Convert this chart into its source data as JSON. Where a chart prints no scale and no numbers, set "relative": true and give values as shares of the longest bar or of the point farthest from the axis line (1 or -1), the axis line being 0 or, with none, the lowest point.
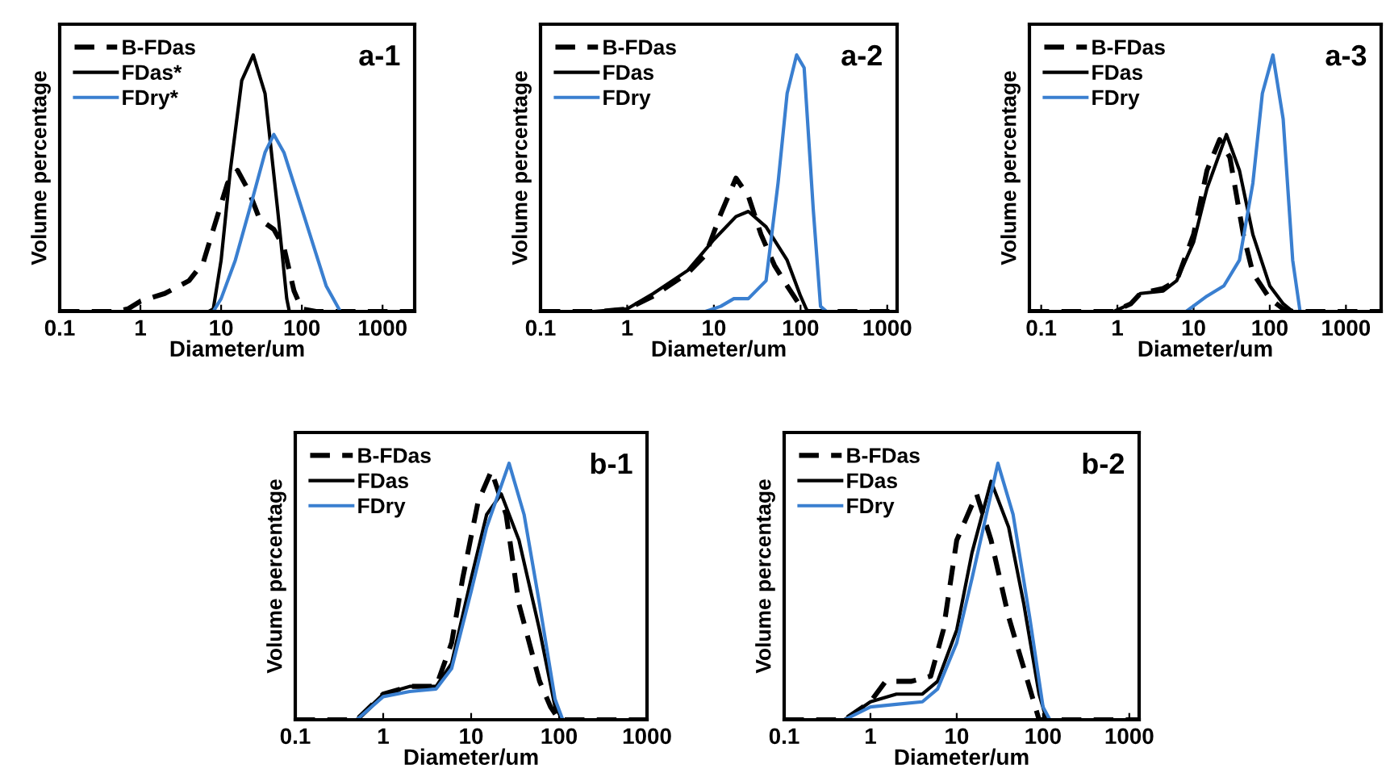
{
  "chart_data": [
    {
      "type": "line",
      "relative": true,
      "log": "x",
      "xlabel": "Diameter/um",
      "ylabel": "Volume percentage",
      "annotations": [
        "a-1"
      ],
      "legend": "top left",
      "xlim": [
        0.1,
        2500
      ],
      "xticks": [
        0.1,
        1,
        10,
        100,
        1000
      ],
      "series": [
        {
          "name": "B-FDas",
          "color": "#000000",
          "line_style": "dashed",
          "x": [
            0.1,
            0.5,
            0.7,
            1,
            2,
            4,
            6,
            8,
            12,
            16,
            22,
            30,
            45,
            60,
            80,
            100,
            150,
            2500
          ],
          "values": [
            0,
            0,
            0.01,
            0.04,
            0.07,
            0.12,
            0.19,
            0.32,
            0.5,
            0.55,
            0.47,
            0.36,
            0.32,
            0.25,
            0.08,
            0.01,
            0,
            0
          ]
        },
        {
          "name": "FDas*",
          "color": "#000000",
          "line_style": "solid",
          "x": [
            0.1,
            7,
            8,
            10,
            13,
            18,
            25,
            35,
            50,
            65,
            70,
            2500
          ],
          "values": [
            0,
            0,
            0.01,
            0.2,
            0.55,
            0.9,
            1.0,
            0.85,
            0.4,
            0.05,
            0,
            0
          ]
        },
        {
          "name": "FDry*",
          "color": "#3a7fd0",
          "line_style": "solid",
          "x": [
            0.1,
            8,
            10,
            15,
            25,
            35,
            45,
            60,
            100,
            200,
            300,
            2500
          ],
          "values": [
            0,
            0,
            0.05,
            0.2,
            0.45,
            0.62,
            0.69,
            0.62,
            0.4,
            0.1,
            0,
            0
          ]
        }
      ]
    },
    {
      "type": "line",
      "relative": true,
      "log": "x",
      "xlabel": "Diameter/um",
      "ylabel": "Volume percentage",
      "annotations": [
        "a-2"
      ],
      "legend": "top left",
      "xlim": [
        0.1,
        1300
      ],
      "xticks": [
        0.1,
        1,
        10,
        100,
        1000
      ],
      "series": [
        {
          "name": "B-FDas",
          "color": "#000000",
          "line_style": "dashed",
          "x": [
            0.1,
            0.5,
            1,
            2,
            5,
            8,
            12,
            18,
            25,
            35,
            50,
            70,
            100,
            120,
            1300
          ],
          "values": [
            0,
            0,
            0.01,
            0.06,
            0.15,
            0.22,
            0.38,
            0.52,
            0.45,
            0.3,
            0.18,
            0.1,
            0.02,
            0,
            0
          ]
        },
        {
          "name": "FDas",
          "color": "#000000",
          "line_style": "solid",
          "x": [
            0.1,
            0.4,
            1,
            2,
            5,
            10,
            18,
            25,
            40,
            70,
            100,
            120,
            1300
          ],
          "values": [
            0,
            0,
            0.01,
            0.07,
            0.16,
            0.28,
            0.37,
            0.39,
            0.33,
            0.2,
            0.06,
            0,
            0
          ]
        },
        {
          "name": "FDry",
          "color": "#3a7fd0",
          "line_style": "solid",
          "x": [
            0.1,
            8,
            12,
            17,
            25,
            40,
            55,
            70,
            90,
            110,
            140,
            170,
            200,
            1300
          ],
          "values": [
            0,
            0,
            0.02,
            0.05,
            0.05,
            0.12,
            0.5,
            0.85,
            1.0,
            0.95,
            0.4,
            0.02,
            0,
            0
          ]
        }
      ]
    },
    {
      "type": "line",
      "relative": true,
      "log": "x",
      "xlabel": "Diameter/um",
      "ylabel": "Volume percentage",
      "annotations": [
        "a-3"
      ],
      "legend": "top left",
      "xlim": [
        0.07,
        2900
      ],
      "xticks": [
        0.1,
        1,
        10,
        100,
        1000
      ],
      "series": [
        {
          "name": "B-FDas",
          "color": "#000000",
          "line_style": "dashed",
          "x": [
            0.07,
            0.9,
            1.5,
            2,
            4,
            6,
            10,
            15,
            22,
            30,
            45,
            60,
            100,
            150,
            200,
            2900
          ],
          "values": [
            0,
            0,
            0.03,
            0.07,
            0.09,
            0.12,
            0.3,
            0.55,
            0.67,
            0.6,
            0.3,
            0.15,
            0.05,
            0.01,
            0,
            0
          ]
        },
        {
          "name": "FDas",
          "color": "#000000",
          "line_style": "solid",
          "x": [
            0.07,
            0.9,
            1.5,
            2,
            4,
            6,
            10,
            15,
            27,
            40,
            60,
            100,
            150,
            200,
            2900
          ],
          "values": [
            0,
            0,
            0.03,
            0.07,
            0.08,
            0.12,
            0.27,
            0.48,
            0.69,
            0.55,
            0.3,
            0.1,
            0.03,
            0,
            0
          ]
        },
        {
          "name": "FDry",
          "color": "#3a7fd0",
          "line_style": "solid",
          "x": [
            0.07,
            8,
            15,
            25,
            40,
            60,
            80,
            110,
            150,
            200,
            250,
            2900
          ],
          "values": [
            0,
            0,
            0.06,
            0.1,
            0.2,
            0.5,
            0.85,
            1.0,
            0.75,
            0.2,
            0,
            0
          ]
        }
      ]
    },
    {
      "type": "line",
      "relative": true,
      "log": "x",
      "xlabel": "Diameter/um",
      "ylabel": "Volume percentage",
      "annotations": [
        "b-1"
      ],
      "legend": "top left",
      "xlim": [
        0.1,
        1000
      ],
      "xticks": [
        0.1,
        1,
        10,
        100,
        1000
      ],
      "series": [
        {
          "name": "B-FDas",
          "color": "#000000",
          "line_style": "dashed",
          "x": [
            0.1,
            0.5,
            1,
            2,
            4,
            6,
            8,
            12,
            17,
            25,
            35,
            60,
            80,
            100,
            1000
          ],
          "values": [
            0,
            0,
            0.1,
            0.13,
            0.13,
            0.3,
            0.55,
            0.85,
            0.97,
            0.8,
            0.45,
            0.15,
            0.05,
            0,
            0
          ]
        },
        {
          "name": "FDas",
          "color": "#000000",
          "line_style": "solid",
          "x": [
            0.1,
            0.5,
            1,
            2,
            4,
            6,
            10,
            15,
            22,
            35,
            60,
            90,
            110,
            1000
          ],
          "values": [
            0,
            0,
            0.1,
            0.13,
            0.13,
            0.22,
            0.55,
            0.8,
            0.88,
            0.7,
            0.35,
            0.05,
            0,
            0
          ]
        },
        {
          "name": "FDry",
          "color": "#3a7fd0",
          "line_style": "solid",
          "x": [
            0.1,
            0.5,
            1,
            2,
            4,
            6,
            10,
            15,
            27,
            40,
            60,
            90,
            110,
            1000
          ],
          "values": [
            0,
            0,
            0.09,
            0.11,
            0.12,
            0.2,
            0.5,
            0.75,
            1.0,
            0.8,
            0.45,
            0.08,
            0,
            0
          ]
        }
      ]
    },
    {
      "type": "line",
      "relative": true,
      "log": "x",
      "xlabel": "Diameter/um",
      "ylabel": "Volume percentage",
      "annotations": [
        "b-2"
      ],
      "legend": "top left",
      "xlim": [
        0.1,
        1300
      ],
      "xticks": [
        0.1,
        1,
        10,
        100,
        1000
      ],
      "series": [
        {
          "name": "B-FDas",
          "color": "#000000",
          "line_style": "dashed",
          "x": [
            0.1,
            0.5,
            1,
            1.5,
            3,
            5,
            7,
            10,
            17,
            25,
            40,
            60,
            90,
            1300
          ],
          "values": [
            0,
            0,
            0.07,
            0.15,
            0.15,
            0.17,
            0.35,
            0.7,
            0.88,
            0.7,
            0.4,
            0.2,
            0,
            0
          ]
        },
        {
          "name": "FDas",
          "color": "#000000",
          "line_style": "solid",
          "x": [
            0.1,
            0.5,
            1,
            2,
            4,
            6,
            10,
            15,
            25,
            40,
            60,
            90,
            110,
            1300
          ],
          "values": [
            0,
            0,
            0.07,
            0.1,
            0.1,
            0.15,
            0.35,
            0.65,
            0.93,
            0.75,
            0.45,
            0.1,
            0,
            0
          ]
        },
        {
          "name": "FDry",
          "color": "#3a7fd0",
          "line_style": "solid",
          "x": [
            0.1,
            0.5,
            1,
            2,
            4,
            6,
            10,
            15,
            30,
            45,
            70,
            100,
            120,
            1300
          ],
          "values": [
            0,
            0,
            0.05,
            0.06,
            0.07,
            0.12,
            0.3,
            0.55,
            1.0,
            0.8,
            0.4,
            0.05,
            0,
            0
          ]
        }
      ]
    }
  ]
}
